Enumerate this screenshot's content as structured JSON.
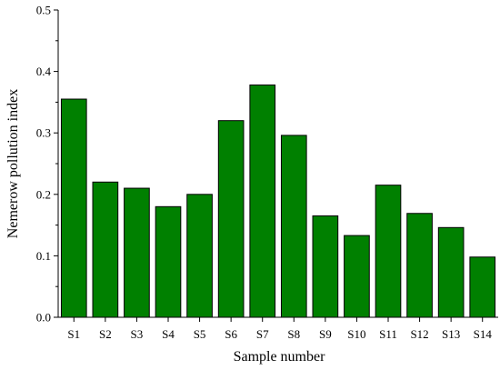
{
  "chart_data": {
    "type": "bar",
    "title": "",
    "xlabel": "Sample number",
    "ylabel": "Nemerow pollution index",
    "categories": [
      "S1",
      "S2",
      "S3",
      "S4",
      "S5",
      "S6",
      "S7",
      "S8",
      "S9",
      "S10",
      "S11",
      "S12",
      "S13",
      "S14"
    ],
    "values": [
      0.355,
      0.22,
      0.21,
      0.18,
      0.2,
      0.32,
      0.378,
      0.296,
      0.165,
      0.133,
      0.215,
      0.169,
      0.146,
      0.098
    ],
    "ylim": [
      0,
      0.5
    ],
    "yticks": [
      "0.0",
      "0.1",
      "0.2",
      "0.3",
      "0.4",
      "0.5"
    ],
    "grid": false,
    "legend": "none",
    "bar_color": "#008000",
    "bar_edge_color": "#000000"
  }
}
